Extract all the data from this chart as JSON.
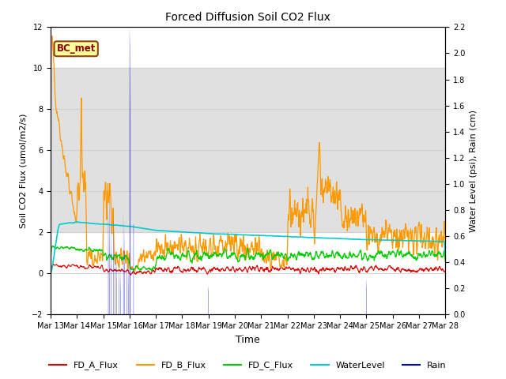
{
  "title": "Forced Diffusion Soil CO2 Flux",
  "xlabel": "Time",
  "ylabel_left": "Soil CO2 Flux (umol/m2/s)",
  "ylabel_right": "Water Level (psi), Rain (cm)",
  "ylim_left": [
    -2,
    12
  ],
  "ylim_right": [
    0.0,
    2.2
  ],
  "yticks_left": [
    -2,
    0,
    2,
    4,
    6,
    8,
    10,
    12
  ],
  "yticks_right": [
    0.0,
    0.2,
    0.4,
    0.6,
    0.8,
    1.0,
    1.2,
    1.4,
    1.6,
    1.8,
    2.0,
    2.2
  ],
  "xtick_labels": [
    "Mar 13",
    "Mar 14",
    "Mar 15",
    "Mar 16",
    "Mar 17",
    "Mar 18",
    "Mar 19",
    "Mar 20",
    "Mar 21",
    "Mar 22",
    "Mar 23",
    "Mar 24",
    "Mar 25",
    "Mar 26",
    "Mar 27",
    "Mar 28"
  ],
  "colors": {
    "FD_A_Flux": "#dd0000",
    "FD_B_Flux": "#ff9900",
    "FD_C_Flux": "#00cc00",
    "WaterLevel": "#00cccc",
    "Rain": "#0000cc"
  },
  "legend_labels": [
    "FD_A_Flux",
    "FD_B_Flux",
    "FD_C_Flux",
    "WaterLevel",
    "Rain"
  ],
  "bc_met_label": "BC_met",
  "band_color": "#e0e0e0",
  "background_color": "#ffffff",
  "n_points": 1440,
  "n_days": 15
}
